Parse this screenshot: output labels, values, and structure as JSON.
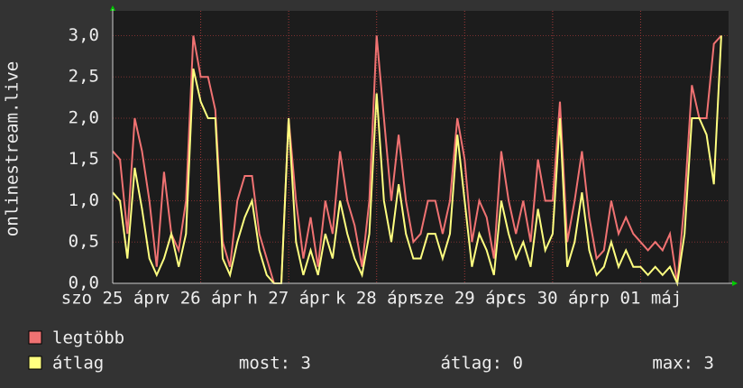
{
  "chart_data": {
    "type": "line",
    "y_label": "onlinestream.live",
    "x": [
      0,
      2,
      4,
      6,
      8,
      10,
      12,
      14,
      16,
      18,
      20,
      22,
      24,
      26,
      28,
      30,
      32,
      34,
      36,
      38,
      40,
      42,
      44,
      46,
      48,
      50,
      52,
      54,
      56,
      58,
      60,
      62,
      64,
      66,
      68,
      70,
      72,
      74,
      76,
      78,
      80,
      82,
      84,
      86,
      88,
      90,
      92,
      94,
      96,
      98,
      100,
      102,
      104,
      106,
      108,
      110,
      112,
      114,
      116,
      118,
      120,
      122,
      124,
      126,
      128,
      130,
      132,
      134,
      136,
      138,
      140,
      142,
      144,
      146,
      148,
      150,
      152,
      154,
      156,
      158,
      160,
      162,
      164,
      166
    ],
    "xlim": [
      0,
      168
    ],
    "xticks": [
      {
        "value": 0,
        "label": "szo 25 ápr"
      },
      {
        "value": 24,
        "label": "v 26 ápr"
      },
      {
        "value": 48,
        "label": "h 27 ápr"
      },
      {
        "value": 72,
        "label": "k 28 ápr"
      },
      {
        "value": 96,
        "label": "sze 29 ápr"
      },
      {
        "value": 120,
        "label": "cs 30 ápr"
      },
      {
        "value": 144,
        "label": "p 01 máj"
      }
    ],
    "ylim": [
      0,
      3.3
    ],
    "yticks": [
      {
        "value": 0,
        "label": "0,0"
      },
      {
        "value": 0.5,
        "label": "0,5"
      },
      {
        "value": 1,
        "label": "1,0"
      },
      {
        "value": 1.5,
        "label": "1,5"
      },
      {
        "value": 2,
        "label": "2,0"
      },
      {
        "value": 2.5,
        "label": "2,5"
      },
      {
        "value": 3,
        "label": "3,0"
      }
    ],
    "grid": true,
    "series": [
      {
        "name": "legtöbb",
        "color": "#f07272",
        "values": [
          1.6,
          1.5,
          0.6,
          2.0,
          1.6,
          1.0,
          0.2,
          1.35,
          0.6,
          0.4,
          1.0,
          3.0,
          2.5,
          2.5,
          2.1,
          0.5,
          0.2,
          1.0,
          1.3,
          1.3,
          0.6,
          0.3,
          0,
          0,
          2.0,
          1.0,
          0.3,
          0.8,
          0.2,
          1.0,
          0.6,
          1.6,
          1.0,
          0.7,
          0.2,
          1.0,
          3.0,
          2.0,
          1.0,
          1.8,
          1.0,
          0.5,
          0.6,
          1.0,
          1.0,
          0.6,
          1.0,
          2.0,
          1.5,
          0.5,
          1.0,
          0.8,
          0.3,
          1.6,
          1.0,
          0.6,
          1.0,
          0.5,
          1.5,
          1.0,
          1.0,
          2.2,
          0.5,
          1.0,
          1.6,
          0.8,
          0.3,
          0.4,
          1.0,
          0.6,
          0.8,
          0.6,
          0.5,
          0.4,
          0.5,
          0.4,
          0.6,
          0,
          1.0,
          2.4,
          2.0,
          2.0,
          2.9,
          3.0
        ]
      },
      {
        "name": "átlag",
        "color": "#ffff80",
        "values": [
          1.1,
          1.0,
          0.3,
          1.4,
          0.9,
          0.3,
          0.1,
          0.3,
          0.6,
          0.2,
          0.6,
          2.6,
          2.2,
          2.0,
          2.0,
          0.3,
          0.1,
          0.5,
          0.8,
          1.0,
          0.4,
          0.1,
          0,
          0,
          2.0,
          0.5,
          0.1,
          0.4,
          0.1,
          0.6,
          0.3,
          1.0,
          0.6,
          0.3,
          0.1,
          0.6,
          2.3,
          1.0,
          0.5,
          1.2,
          0.6,
          0.3,
          0.3,
          0.6,
          0.6,
          0.3,
          0.6,
          1.8,
          1.0,
          0.2,
          0.6,
          0.4,
          0.1,
          1.0,
          0.6,
          0.3,
          0.5,
          0.2,
          0.9,
          0.4,
          0.6,
          2.0,
          0.2,
          0.5,
          1.1,
          0.4,
          0.1,
          0.2,
          0.5,
          0.2,
          0.4,
          0.2,
          0.2,
          0.1,
          0.2,
          0.1,
          0.2,
          0,
          0.6,
          2.0,
          2.0,
          1.8,
          1.2,
          3.0
        ]
      }
    ],
    "stats": [
      "most: 3",
      "átlag: 0",
      "max: 3"
    ]
  }
}
